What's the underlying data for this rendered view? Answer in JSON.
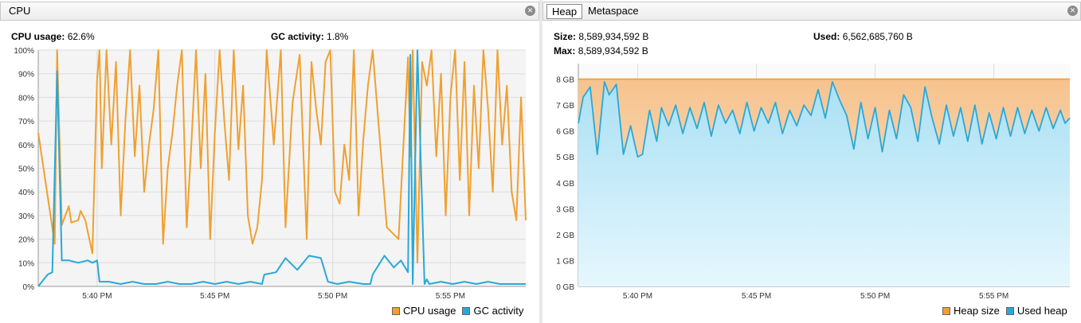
{
  "cpu": {
    "tab_label": "CPU",
    "usage_label": "CPU usage:",
    "usage_value": "62.6%",
    "gc_label": "GC activity:",
    "gc_value": "1.8%",
    "legend": [
      {
        "label": "CPU usage",
        "color": "#f0a030"
      },
      {
        "label": "GC activity",
        "color": "#29a8d8"
      }
    ]
  },
  "heap": {
    "tabs": [
      {
        "label": "Heap",
        "active": true
      },
      {
        "label": "Metaspace",
        "active": false
      }
    ],
    "size_label": "Size:",
    "size_value": "8,589,934,592 B",
    "used_label": "Used:",
    "used_value": "6,562,685,760 B",
    "max_label": "Max:",
    "max_value": "8,589,934,592 B",
    "legend": [
      {
        "label": "Heap size",
        "color": "#f0a030"
      },
      {
        "label": "Used heap",
        "color": "#29a8d8"
      }
    ]
  },
  "chart_data": [
    {
      "type": "line",
      "x_ticks": [
        "5:40 PM",
        "5:45 PM",
        "5:50 PM",
        "5:55 PM"
      ],
      "y_ticks": [
        "0%",
        "10%",
        "20%",
        "30%",
        "40%",
        "50%",
        "60%",
        "70%",
        "80%",
        "90%",
        "100%"
      ],
      "ylim": [
        0,
        100
      ],
      "xlim_minutes": [
        37.5,
        58.2
      ],
      "series": [
        {
          "name": "CPU usage",
          "color": "#f0a030",
          "x": [
            37.5,
            38.2,
            38.3,
            38.5,
            38.8,
            38.9,
            39.2,
            39.3,
            39.5,
            39.8,
            40.0,
            40.1,
            40.2,
            40.4,
            40.6,
            40.8,
            41.0,
            41.2,
            41.4,
            41.6,
            41.8,
            42.0,
            42.2,
            42.4,
            42.6,
            42.8,
            43.0,
            43.2,
            43.4,
            43.6,
            43.8,
            44.0,
            44.2,
            44.4,
            44.6,
            44.8,
            45.0,
            45.2,
            45.4,
            45.6,
            45.8,
            46.0,
            46.2,
            46.4,
            46.6,
            46.8,
            47.0,
            47.2,
            47.5,
            47.8,
            48.0,
            48.3,
            48.6,
            48.9,
            49.1,
            49.3,
            49.5,
            49.7,
            49.9,
            50.1,
            50.3,
            50.5,
            50.7,
            50.9,
            51.1,
            51.3,
            51.5,
            51.7,
            52.3,
            52.8,
            53.2,
            53.3,
            53.4,
            53.6,
            53.8,
            54.0,
            54.2,
            54.4,
            54.6,
            54.8,
            55.0,
            55.2,
            55.4,
            55.6,
            55.8,
            56.0,
            56.2,
            56.4,
            56.6,
            56.8,
            57.0,
            57.2,
            57.4,
            57.6,
            57.8,
            58.0,
            58.2
          ],
          "y": [
            65,
            18,
            100,
            26,
            34,
            27,
            28,
            32,
            28,
            14,
            88,
            100,
            50,
            100,
            60,
            95,
            30,
            70,
            100,
            55,
            85,
            40,
            60,
            75,
            100,
            18,
            50,
            65,
            85,
            100,
            25,
            60,
            100,
            50,
            90,
            20,
            65,
            100,
            70,
            45,
            100,
            58,
            85,
            30,
            18,
            25,
            45,
            100,
            60,
            100,
            25,
            78,
            98,
            20,
            95,
            75,
            60,
            95,
            100,
            40,
            35,
            60,
            45,
            100,
            30,
            62,
            85,
            100,
            25,
            20,
            97,
            55,
            100,
            10,
            95,
            85,
            100,
            55,
            90,
            30,
            80,
            100,
            45,
            95,
            30,
            85,
            50,
            100,
            75,
            40,
            100,
            60,
            85,
            40,
            28,
            80,
            28
          ]
        },
        {
          "name": "GC activity",
          "color": "#29a8d8",
          "x": [
            37.5,
            37.9,
            38.1,
            38.3,
            38.5,
            38.8,
            39.2,
            39.6,
            39.8,
            40.0,
            40.1,
            40.5,
            41.0,
            41.5,
            42.0,
            42.5,
            43.0,
            43.5,
            44.0,
            44.5,
            45.0,
            45.5,
            46.0,
            46.5,
            47.0,
            47.1,
            47.6,
            48.0,
            48.5,
            49.0,
            49.5,
            49.8,
            50.2,
            50.7,
            51.3,
            51.6,
            51.7,
            52.2,
            52.6,
            52.9,
            53.2,
            53.3,
            53.4,
            53.6,
            53.9,
            54.0,
            54.1,
            54.6,
            55.1,
            55.6,
            56.1,
            56.6,
            57.1,
            57.6,
            58.2
          ],
          "y": [
            0,
            5,
            6,
            91,
            11,
            11,
            10,
            11,
            10,
            11,
            2,
            2,
            1,
            2,
            1,
            1,
            2,
            1,
            1,
            2,
            1,
            2,
            1,
            2,
            1,
            5,
            6,
            12,
            7,
            13,
            12,
            2,
            1,
            2,
            1,
            1,
            5,
            13,
            8,
            11,
            6,
            98,
            1,
            100,
            1,
            3,
            1,
            2,
            1,
            2,
            1,
            2,
            1,
            1,
            1
          ]
        }
      ]
    },
    {
      "type": "area",
      "x_ticks": [
        "5:40 PM",
        "5:45 PM",
        "5:50 PM",
        "5:55 PM"
      ],
      "y_ticks": [
        "0 GB",
        "1 GB",
        "2 GB",
        "3 GB",
        "4 GB",
        "5 GB",
        "6 GB",
        "7 GB",
        "8 GB"
      ],
      "ylim": [
        0,
        8.6
      ],
      "xlim_minutes": [
        37.5,
        58.2
      ],
      "series": [
        {
          "name": "Heap size",
          "color": "#f0a030",
          "x": [
            37.5,
            58.2
          ],
          "y": [
            8.0,
            8.0
          ]
        },
        {
          "name": "Used heap",
          "color": "#29a8d8",
          "x": [
            37.5,
            37.7,
            38.0,
            38.3,
            38.6,
            38.8,
            39.1,
            39.4,
            39.7,
            40.0,
            40.2,
            40.5,
            40.8,
            41.0,
            41.3,
            41.6,
            41.9,
            42.2,
            42.5,
            42.8,
            43.1,
            43.4,
            43.7,
            44.0,
            44.3,
            44.6,
            44.9,
            45.2,
            45.5,
            45.8,
            46.1,
            46.4,
            46.7,
            47.0,
            47.3,
            47.6,
            47.9,
            48.2,
            48.5,
            48.8,
            49.1,
            49.4,
            49.7,
            50.0,
            50.3,
            50.6,
            50.9,
            51.2,
            51.5,
            51.8,
            52.1,
            52.4,
            52.7,
            53.0,
            53.3,
            53.6,
            53.9,
            54.2,
            54.5,
            54.8,
            55.1,
            55.4,
            55.7,
            56.0,
            56.3,
            56.6,
            56.9,
            57.2,
            57.5,
            57.8,
            58.0,
            58.2
          ],
          "y": [
            6.3,
            7.3,
            7.7,
            5.1,
            7.9,
            7.4,
            7.8,
            5.1,
            6.2,
            5.0,
            5.1,
            6.8,
            5.6,
            6.9,
            6.2,
            7.0,
            5.9,
            6.9,
            6.1,
            7.1,
            5.8,
            7.0,
            6.3,
            6.8,
            5.9,
            7.1,
            6.0,
            6.9,
            6.3,
            7.1,
            5.9,
            6.8,
            6.2,
            7.0,
            6.6,
            7.6,
            6.5,
            7.9,
            7.2,
            6.6,
            5.3,
            7.1,
            5.7,
            6.9,
            5.2,
            6.8,
            5.7,
            7.4,
            6.9,
            5.6,
            7.7,
            6.5,
            5.5,
            7.0,
            5.8,
            6.9,
            5.6,
            7.0,
            5.5,
            6.7,
            5.7,
            6.9,
            5.8,
            6.9,
            5.9,
            6.8,
            6.0,
            6.9,
            6.1,
            6.8,
            6.3,
            6.5
          ]
        }
      ]
    }
  ]
}
